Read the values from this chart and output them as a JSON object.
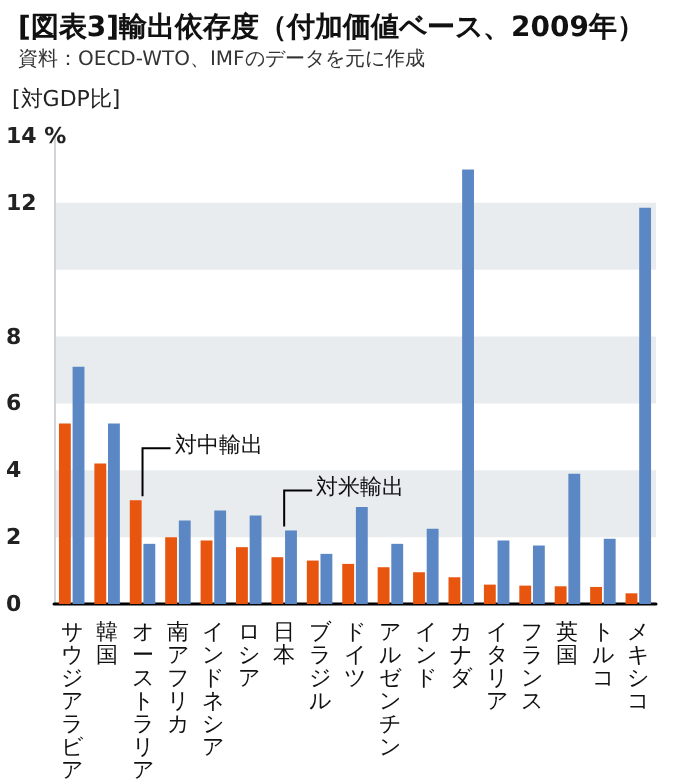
{
  "chart_data": {
    "type": "bar",
    "title": "[図表3]輸出依存度（付加価値ベース、2009年）",
    "subtitle": "資料：OECD-WTO、IMFのデータを元に作成",
    "ylabel": "[対GDP比]",
    "categories": [
      "サウジアラビア",
      "韓国",
      "オーストラリア",
      "南アフリカ",
      "インドネシア",
      "ロシア",
      "日本",
      "ブラジル",
      "ドイツ",
      "アルゼンチン",
      "インド",
      "カナダ",
      "イタリア",
      "フランス",
      "英国",
      "トルコ",
      "メキシコ"
    ],
    "series": [
      {
        "name": "対中輸出",
        "color": "#e8550f",
        "values": [
          5.4,
          4.2,
          3.1,
          2.0,
          1.9,
          1.7,
          1.4,
          1.3,
          1.2,
          1.1,
          0.95,
          0.8,
          0.58,
          0.55,
          0.53,
          0.51,
          0.32
        ]
      },
      {
        "name": "対米輸出",
        "color": "#5b87c5",
        "values": [
          7.1,
          5.4,
          1.8,
          2.5,
          2.8,
          2.65,
          2.2,
          1.5,
          2.9,
          1.8,
          2.25,
          13.0,
          1.9,
          1.75,
          3.9,
          1.95,
          11.85
        ]
      }
    ],
    "ylim": [
      0,
      14
    ],
    "yticks": [
      0,
      2,
      4,
      6,
      8,
      12,
      {
        "value": 14,
        "label": "14 %"
      }
    ],
    "bands": [
      {
        "axis": "y",
        "from": 2,
        "to": 4,
        "color": "#e9ecef"
      },
      {
        "axis": "y",
        "from": 6,
        "to": 8,
        "color": "#e9ecef"
      },
      {
        "axis": "y",
        "from": 10,
        "to": 12,
        "color": "#e9ecef"
      }
    ],
    "legend": false
  }
}
